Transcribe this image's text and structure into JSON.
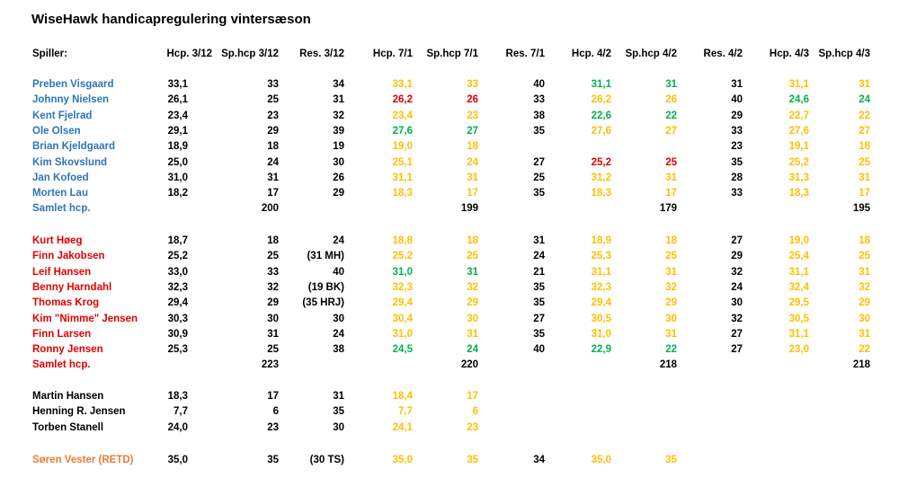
{
  "title": "WiseHawk handicapregulering vintersæson",
  "colors": {
    "blue": "#2e75b6",
    "red": "#e00000",
    "black": "#000000",
    "orange": "#ed7d31",
    "yellow": "#ffc000",
    "green": "#00b050"
  },
  "header": [
    "Spiller:",
    "Hcp. 3/12",
    "Sp.hcp 3/12",
    "Res. 3/12",
    "Hcp. 7/1",
    "Sp.hcp 7/1",
    "Res. 7/1",
    "Hcp. 4/2",
    "Sp.hcp 4/2",
    "Res. 4/2",
    "Hcp. 4/3",
    "Sp.hcp 4/3"
  ],
  "groups": [
    {
      "name_color": "blue",
      "rows": [
        {
          "name": "Preben Visgaard",
          "cells": [
            [
              "33,1",
              "k"
            ],
            [
              "33",
              "k"
            ],
            [
              "34",
              "k"
            ],
            [
              "33,1",
              "y"
            ],
            [
              "33",
              "y"
            ],
            [
              "40",
              "k"
            ],
            [
              "31,1",
              "g"
            ],
            [
              "31",
              "g"
            ],
            [
              "31",
              "k"
            ],
            [
              "31,1",
              "y"
            ],
            [
              "31",
              "y"
            ]
          ]
        },
        {
          "name": "Johnny Nielsen",
          "cells": [
            [
              "26,1",
              "k"
            ],
            [
              "25",
              "k"
            ],
            [
              "31",
              "k"
            ],
            [
              "26,2",
              "r"
            ],
            [
              "26",
              "r"
            ],
            [
              "33",
              "k"
            ],
            [
              "26,2",
              "y"
            ],
            [
              "26",
              "y"
            ],
            [
              "40",
              "k"
            ],
            [
              "24,6",
              "g"
            ],
            [
              "24",
              "g"
            ]
          ]
        },
        {
          "name": "Kent Fjelrad",
          "cells": [
            [
              "23,4",
              "k"
            ],
            [
              "23",
              "k"
            ],
            [
              "32",
              "k"
            ],
            [
              "23,4",
              "y"
            ],
            [
              "23",
              "y"
            ],
            [
              "38",
              "k"
            ],
            [
              "22,6",
              "g"
            ],
            [
              "22",
              "g"
            ],
            [
              "29",
              "k"
            ],
            [
              "22,7",
              "y"
            ],
            [
              "22",
              "y"
            ]
          ]
        },
        {
          "name": "Ole Olsen",
          "cells": [
            [
              "29,1",
              "k"
            ],
            [
              "29",
              "k"
            ],
            [
              "39",
              "k"
            ],
            [
              "27,6",
              "g"
            ],
            [
              "27",
              "g"
            ],
            [
              "35",
              "k"
            ],
            [
              "27,6",
              "y"
            ],
            [
              "27",
              "y"
            ],
            [
              "33",
              "k"
            ],
            [
              "27,6",
              "y"
            ],
            [
              "27",
              "y"
            ]
          ]
        },
        {
          "name": "Brian Kjeldgaard",
          "cells": [
            [
              "18,9",
              "k"
            ],
            [
              "18",
              "k"
            ],
            [
              "19",
              "k"
            ],
            [
              "19,0",
              "y"
            ],
            [
              "18",
              "y"
            ],
            [
              "",
              ""
            ],
            [
              "",
              ""
            ],
            [
              "",
              ""
            ],
            [
              "23",
              "k"
            ],
            [
              "19,1",
              "y"
            ],
            [
              "18",
              "y"
            ]
          ]
        },
        {
          "name": "Kim Skovslund",
          "cells": [
            [
              "25,0",
              "k"
            ],
            [
              "24",
              "k"
            ],
            [
              "30",
              "k"
            ],
            [
              "25,1",
              "y"
            ],
            [
              "24",
              "y"
            ],
            [
              "27",
              "k"
            ],
            [
              "25,2",
              "r"
            ],
            [
              "25",
              "r"
            ],
            [
              "35",
              "k"
            ],
            [
              "25,2",
              "y"
            ],
            [
              "25",
              "y"
            ]
          ]
        },
        {
          "name": "Jan Kofoed",
          "cells": [
            [
              "31,0",
              "k"
            ],
            [
              "31",
              "k"
            ],
            [
              "26",
              "k"
            ],
            [
              "31,1",
              "y"
            ],
            [
              "31",
              "y"
            ],
            [
              "25",
              "k"
            ],
            [
              "31,2",
              "y"
            ],
            [
              "31",
              "y"
            ],
            [
              "28",
              "k"
            ],
            [
              "31,3",
              "y"
            ],
            [
              "31",
              "y"
            ]
          ]
        },
        {
          "name": "Morten Lau",
          "cells": [
            [
              "18,2",
              "k"
            ],
            [
              "17",
              "k"
            ],
            [
              "29",
              "k"
            ],
            [
              "18,3",
              "y"
            ],
            [
              "17",
              "y"
            ],
            [
              "35",
              "k"
            ],
            [
              "18,3",
              "y"
            ],
            [
              "17",
              "y"
            ],
            [
              "33",
              "k"
            ],
            [
              "18,3",
              "y"
            ],
            [
              "17",
              "y"
            ]
          ]
        },
        {
          "name": "Samlet hcp.",
          "cells": [
            [
              "",
              ""
            ],
            [
              "200",
              "k"
            ],
            [
              "",
              ""
            ],
            [
              "",
              ""
            ],
            [
              "199",
              "k"
            ],
            [
              "",
              ""
            ],
            [
              "",
              ""
            ],
            [
              "179",
              "k"
            ],
            [
              "",
              ""
            ],
            [
              "",
              ""
            ],
            [
              "195",
              "k"
            ]
          ]
        }
      ]
    },
    {
      "name_color": "red",
      "rows": [
        {
          "name": "Kurt Høeg",
          "cells": [
            [
              "18,7",
              "k"
            ],
            [
              "18",
              "k"
            ],
            [
              "24",
              "k"
            ],
            [
              "18,8",
              "y"
            ],
            [
              "18",
              "y"
            ],
            [
              "31",
              "k"
            ],
            [
              "18,9",
              "y"
            ],
            [
              "18",
              "y"
            ],
            [
              "27",
              "k"
            ],
            [
              "19,0",
              "y"
            ],
            [
              "18",
              "y"
            ]
          ]
        },
        {
          "name": "Finn Jakobsen",
          "cells": [
            [
              "25,2",
              "k"
            ],
            [
              "25",
              "k"
            ],
            [
              "(31 MH)",
              "k"
            ],
            [
              "25,2",
              "y"
            ],
            [
              "25",
              "y"
            ],
            [
              "24",
              "k"
            ],
            [
              "25,3",
              "y"
            ],
            [
              "25",
              "y"
            ],
            [
              "29",
              "k"
            ],
            [
              "25,4",
              "y"
            ],
            [
              "25",
              "y"
            ]
          ]
        },
        {
          "name": "Leif Hansen",
          "cells": [
            [
              "33,0",
              "k"
            ],
            [
              "33",
              "k"
            ],
            [
              "40",
              "k"
            ],
            [
              "31,0",
              "g"
            ],
            [
              "31",
              "g"
            ],
            [
              "21",
              "k"
            ],
            [
              "31,1",
              "y"
            ],
            [
              "31",
              "y"
            ],
            [
              "32",
              "k"
            ],
            [
              "31,1",
              "y"
            ],
            [
              "31",
              "y"
            ]
          ]
        },
        {
          "name": "Benny Harndahl",
          "cells": [
            [
              "32,3",
              "k"
            ],
            [
              "32",
              "k"
            ],
            [
              "(19 BK)",
              "k"
            ],
            [
              "32,3",
              "y"
            ],
            [
              "32",
              "y"
            ],
            [
              "35",
              "k"
            ],
            [
              "32,3",
              "y"
            ],
            [
              "32",
              "y"
            ],
            [
              "24",
              "k"
            ],
            [
              "32,4",
              "y"
            ],
            [
              "32",
              "y"
            ]
          ]
        },
        {
          "name": "Thomas Krog",
          "cells": [
            [
              "29,4",
              "k"
            ],
            [
              "29",
              "k"
            ],
            [
              "(35 HRJ)",
              "k"
            ],
            [
              "29,4",
              "y"
            ],
            [
              "29",
              "y"
            ],
            [
              "35",
              "k"
            ],
            [
              "29,4",
              "y"
            ],
            [
              "29",
              "y"
            ],
            [
              "30",
              "k"
            ],
            [
              "29,5",
              "y"
            ],
            [
              "29",
              "y"
            ]
          ]
        },
        {
          "name": "Kim \"Nimme\" Jensen",
          "cells": [
            [
              "30,3",
              "k"
            ],
            [
              "30",
              "k"
            ],
            [
              "30",
              "k"
            ],
            [
              "30,4",
              "y"
            ],
            [
              "30",
              "y"
            ],
            [
              "27",
              "k"
            ],
            [
              "30,5",
              "y"
            ],
            [
              "30",
              "y"
            ],
            [
              "32",
              "k"
            ],
            [
              "30,5",
              "y"
            ],
            [
              "30",
              "y"
            ]
          ]
        },
        {
          "name": "Finn Larsen",
          "cells": [
            [
              "30,9",
              "k"
            ],
            [
              "31",
              "k"
            ],
            [
              "24",
              "k"
            ],
            [
              "31,0",
              "y"
            ],
            [
              "31",
              "y"
            ],
            [
              "35",
              "k"
            ],
            [
              "31,0",
              "y"
            ],
            [
              "31",
              "y"
            ],
            [
              "27",
              "k"
            ],
            [
              "31,1",
              "y"
            ],
            [
              "31",
              "y"
            ]
          ]
        },
        {
          "name": "Ronny Jensen",
          "cells": [
            [
              "25,3",
              "k"
            ],
            [
              "25",
              "k"
            ],
            [
              "38",
              "k"
            ],
            [
              "24,5",
              "g"
            ],
            [
              "24",
              "g"
            ],
            [
              "40",
              "k"
            ],
            [
              "22,9",
              "g"
            ],
            [
              "22",
              "g"
            ],
            [
              "27",
              "k"
            ],
            [
              "23,0",
              "y"
            ],
            [
              "22",
              "y"
            ]
          ]
        },
        {
          "name": "Samlet hcp.",
          "cells": [
            [
              "",
              ""
            ],
            [
              "223",
              "k"
            ],
            [
              "",
              ""
            ],
            [
              "",
              ""
            ],
            [
              "220",
              "k"
            ],
            [
              "",
              ""
            ],
            [
              "",
              ""
            ],
            [
              "218",
              "k"
            ],
            [
              "",
              ""
            ],
            [
              "",
              ""
            ],
            [
              "218",
              "k"
            ]
          ]
        }
      ]
    },
    {
      "name_color": "black",
      "rows": [
        {
          "name": "Martin Hansen",
          "cells": [
            [
              "18,3",
              "k"
            ],
            [
              "17",
              "k"
            ],
            [
              "31",
              "k"
            ],
            [
              "18,4",
              "y"
            ],
            [
              "17",
              "y"
            ]
          ]
        },
        {
          "name": "Henning R. Jensen",
          "cells": [
            [
              "7,7",
              "k"
            ],
            [
              "6",
              "k"
            ],
            [
              "35",
              "k"
            ],
            [
              "7,7",
              "y"
            ],
            [
              "6",
              "y"
            ]
          ]
        },
        {
          "name": "Torben Stanell",
          "cells": [
            [
              "24,0",
              "k"
            ],
            [
              "23",
              "k"
            ],
            [
              "30",
              "k"
            ],
            [
              "24,1",
              "y"
            ],
            [
              "23",
              "y"
            ]
          ]
        }
      ]
    },
    {
      "name_color": "orange",
      "rows": [
        {
          "name": "Søren Vester (RETD)",
          "cells": [
            [
              "35,0",
              "k"
            ],
            [
              "35",
              "k"
            ],
            [
              "(30 TS)",
              "k"
            ],
            [
              "35,0",
              "y"
            ],
            [
              "35",
              "y"
            ],
            [
              "34",
              "k"
            ],
            [
              "35,0",
              "y"
            ],
            [
              "35",
              "y"
            ]
          ]
        }
      ]
    }
  ]
}
